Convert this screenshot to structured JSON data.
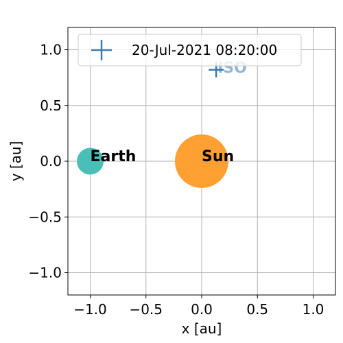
{
  "chart_data": {
    "type": "scatter",
    "xlabel": "x [au]",
    "ylabel": "y [au]",
    "xlim": [
      -1.2,
      1.2
    ],
    "ylim": [
      -1.2,
      1.2
    ],
    "xticks": [
      -1.0,
      -0.5,
      0.0,
      0.5,
      1.0
    ],
    "yticks": [
      -1.0,
      -0.5,
      0.0,
      0.5,
      1.0
    ],
    "xtick_labels": [
      "−1.0",
      "−0.5",
      "0.0",
      "0.5",
      "1.0"
    ],
    "ytick_labels": [
      "−1.0",
      "−0.5",
      "0.0",
      "0.5",
      "1.0"
    ],
    "grid": true,
    "legend_placement": "top-left",
    "legend": {
      "marker": "+",
      "label": "20-Jul-2021 08:20:00",
      "color": "#3a7bae"
    },
    "bodies": [
      {
        "name": "Sun",
        "label": "Sun",
        "x": 0.0,
        "y": 0.0,
        "radius_au": 0.24,
        "color": "#ffa033"
      },
      {
        "name": "Earth",
        "label": "Earth",
        "x": -1.0,
        "y": 0.0,
        "radius_au": 0.12,
        "color": "#49bfb8"
      }
    ],
    "spacecraft": [
      {
        "name": "ISO",
        "label": "ISO",
        "x": 0.13,
        "y": 0.82,
        "marker": "+",
        "color": "#3a7bae"
      }
    ]
  }
}
